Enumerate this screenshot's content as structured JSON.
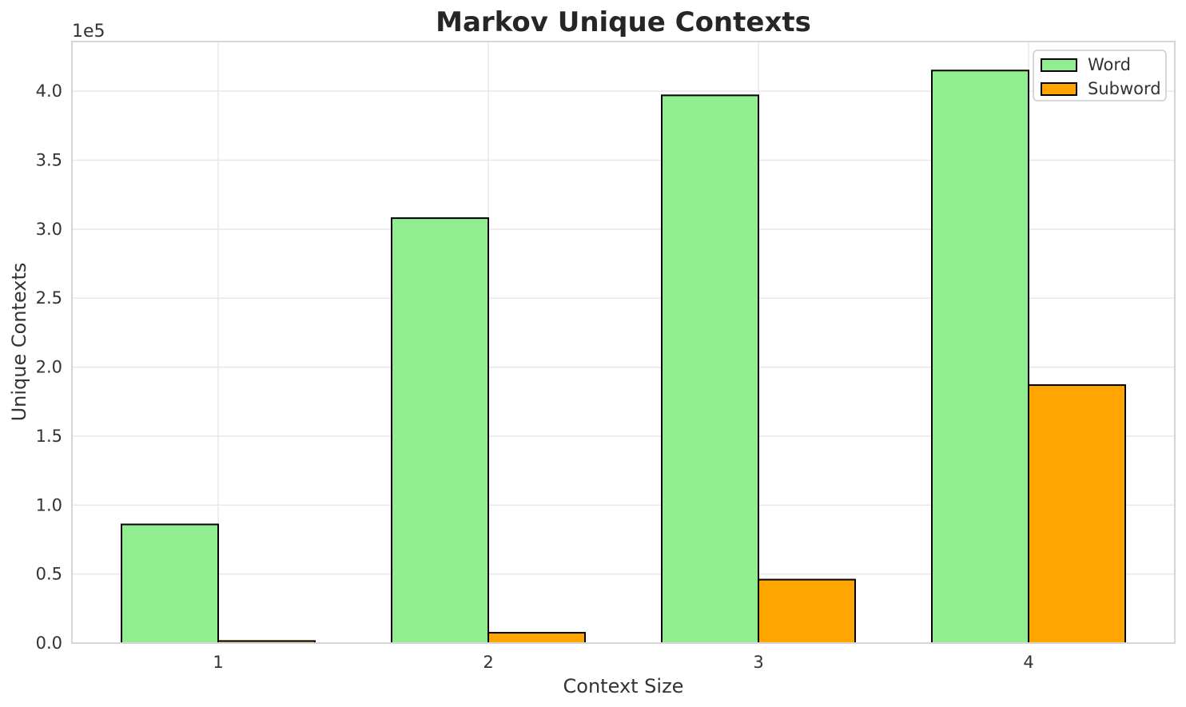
{
  "chart_data": {
    "type": "bar",
    "title": "Markov Unique Contexts",
    "xlabel": "Context Size",
    "ylabel": "Unique Contexts",
    "y_offset_text": "1e5",
    "categories": [
      "1",
      "2",
      "3",
      "4"
    ],
    "series": [
      {
        "name": "Word",
        "color": "#90ee90",
        "values": [
          86000,
          308000,
          397000,
          415000
        ]
      },
      {
        "name": "Subword",
        "color": "#ffa500",
        "values": [
          1500,
          7500,
          46000,
          187000
        ]
      }
    ],
    "bar_edge_color": "#000000",
    "ylim": [
      0,
      436000
    ],
    "y_ticks": [
      0,
      50000,
      100000,
      150000,
      200000,
      250000,
      300000,
      350000,
      400000
    ],
    "y_tick_labels": [
      "0.0",
      "0.5",
      "1.0",
      "1.5",
      "2.0",
      "2.5",
      "3.0",
      "3.5",
      "4.0"
    ],
    "grid": true,
    "legend_position": "upper right",
    "colors": {
      "grid": "#e8e8e8",
      "spine": "#d6d6d6",
      "text": "#333333",
      "title": "#262626",
      "legend_border": "#cccccc",
      "background": "#ffffff"
    }
  }
}
